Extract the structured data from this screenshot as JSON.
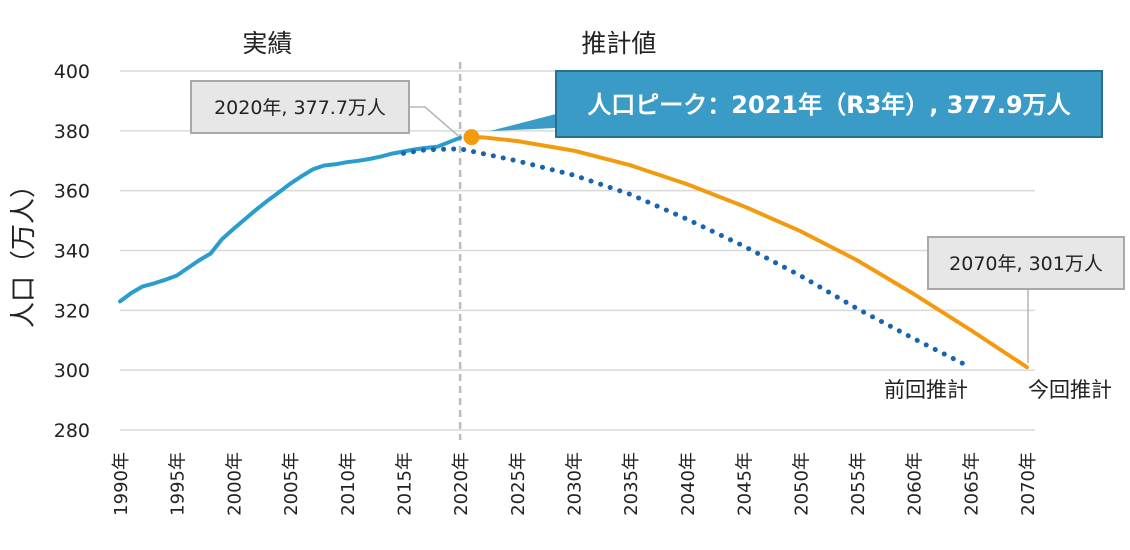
{
  "chart_data": {
    "type": "line",
    "ylabel": "人口（万人）",
    "ylim": [
      280,
      400
    ],
    "yticks": [
      280,
      300,
      320,
      340,
      360,
      380,
      400
    ],
    "xlim": [
      1990,
      2070
    ],
    "xtick_values": [
      1990,
      1995,
      2000,
      2005,
      2010,
      2015,
      2020,
      2025,
      2030,
      2035,
      2040,
      2045,
      2050,
      2055,
      2060,
      2065,
      2070
    ],
    "xtick_labels": [
      "1990年",
      "1995年",
      "2000年",
      "2005年",
      "2010年",
      "2015年",
      "2020年",
      "2025年",
      "2030年",
      "2035年",
      "2040年",
      "2045年",
      "2050年",
      "2055年",
      "2060年",
      "2065年",
      "2070年"
    ],
    "sections": [
      {
        "label": "実績",
        "at": 2003
      },
      {
        "label": "推計値",
        "at": 2034
      }
    ],
    "divider_year": 2020,
    "grid": true,
    "series": [
      {
        "name": "実績",
        "style": "solid",
        "color": "#2a9dcd",
        "x": [
          1990,
          1991,
          1992,
          1993,
          1994,
          1995,
          1996,
          1997,
          1998,
          1999,
          2000,
          2001,
          2002,
          2003,
          2004,
          2005,
          2006,
          2007,
          2008,
          2009,
          2010,
          2011,
          2012,
          2013,
          2014,
          2015,
          2016,
          2017,
          2018,
          2019,
          2020
        ],
        "values": [
          323.0,
          325.8,
          328.0,
          329.0,
          330.2,
          331.6,
          334.2,
          336.8,
          339.0,
          343.8,
          347.2,
          350.4,
          353.6,
          356.6,
          359.4,
          362.3,
          364.8,
          367.1,
          368.4,
          368.8,
          369.5,
          370.0,
          370.6,
          371.4,
          372.4,
          373.1,
          373.8,
          374.3,
          374.7,
          376.2,
          377.7
        ]
      },
      {
        "name": "今回推計",
        "style": "solid",
        "color": "#f29b11",
        "x": [
          2021,
          2022,
          2025,
          2030,
          2035,
          2040,
          2045,
          2050,
          2055,
          2060,
          2065,
          2070
        ],
        "values": [
          377.9,
          377.8,
          376.6,
          373.4,
          368.5,
          362.2,
          354.8,
          346.5,
          336.8,
          325.5,
          313.5,
          301.0
        ]
      },
      {
        "name": "前回推計",
        "style": "dotted",
        "color": "#1565b0",
        "x": [
          2015,
          2017,
          2020,
          2025,
          2030,
          2035,
          2040,
          2045,
          2050,
          2055,
          2060,
          2065
        ],
        "values": [
          372.5,
          373.7,
          374.0,
          370.0,
          365.2,
          358.8,
          350.5,
          341.5,
          331.6,
          320.6,
          310.6,
          301.0
        ]
      }
    ],
    "annotations": [
      {
        "text": "2020年, 377.7万人",
        "x": 2020,
        "y": 377.7,
        "style": "box"
      },
      {
        "text": "人口ピーク：2021年（R3年）, 377.9万人",
        "x": 2021,
        "y": 377.9,
        "style": "highlight",
        "fill": "#3a9cc6"
      },
      {
        "text": "2070年, 301万人",
        "x": 2070,
        "y": 301.0,
        "style": "box"
      },
      {
        "text": "前回推計",
        "series": "前回推計",
        "style": "label"
      },
      {
        "text": "今回推計",
        "series": "今回推計",
        "style": "label"
      }
    ],
    "peak_marker": {
      "x": 2021,
      "y": 377.9,
      "color": "#f29b11"
    }
  }
}
